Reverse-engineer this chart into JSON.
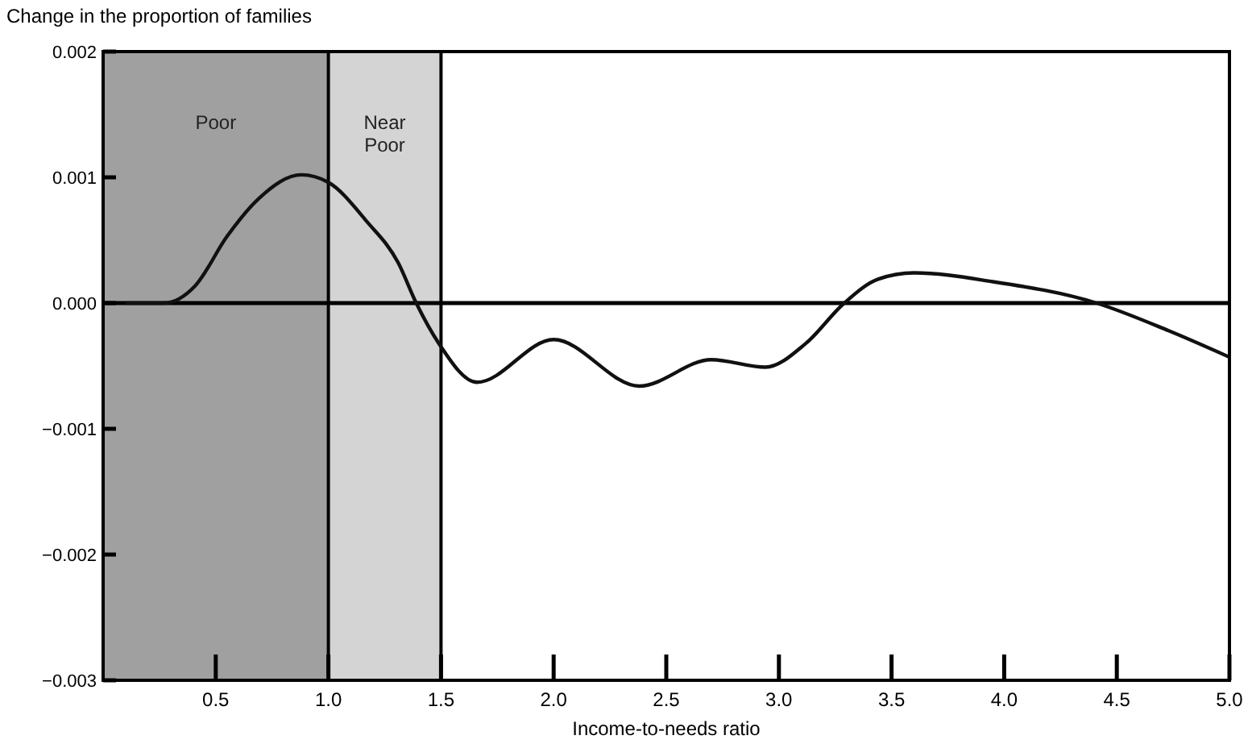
{
  "chart_data": {
    "type": "line",
    "ylabel": "Change in the proportion of families",
    "xlabel": "Income-to-needs ratio",
    "x": [
      0.1,
      0.27,
      0.41,
      0.55,
      0.69,
      0.88,
      1.0,
      1.17,
      1.31,
      1.39,
      1.49,
      1.66,
      2.0,
      2.38,
      2.7,
      2.94,
      3.12,
      3.29,
      3.44,
      3.6,
      3.95,
      4.41,
      4.73,
      5.0
    ],
    "series": [
      {
        "color": "#111111",
        "values": [
          0,
          0,
          0.00014,
          0.00053,
          0.00083,
          0.00102,
          0.00096,
          0.00065,
          0.00032,
          0,
          -0.00032,
          -0.00063,
          -0.00029,
          -0.00066,
          -0.00045,
          -0.00051,
          -0.00032,
          0,
          0.00019,
          0.00024,
          0.00017,
          0,
          -0.00022,
          -0.00043
        ]
      }
    ],
    "xlim": [
      0,
      5
    ],
    "xticks": [
      {
        "value": 0.5,
        "label": "0.5"
      },
      {
        "value": 1,
        "label": "1.0"
      },
      {
        "value": 1.5,
        "label": "1.5"
      },
      {
        "value": 2,
        "label": "2.0"
      },
      {
        "value": 2.5,
        "label": "2.5"
      },
      {
        "value": 3,
        "label": "3.0"
      },
      {
        "value": 3.5,
        "label": "3.5"
      },
      {
        "value": 4,
        "label": "4.0"
      },
      {
        "value": 4.5,
        "label": "4.5"
      },
      {
        "value": 5,
        "label": "5.0"
      }
    ],
    "ylim": [
      -0.003,
      0.002
    ],
    "yticks": [
      {
        "value": -0.003,
        "label": "−0.003"
      },
      {
        "value": -0.002,
        "label": "−0.002"
      },
      {
        "value": -0.001,
        "label": "−0.001"
      },
      {
        "value": 0,
        "label": "0.000"
      },
      {
        "value": 0.001,
        "label": "0.001"
      },
      {
        "value": 0.002,
        "label": "0.002"
      }
    ],
    "bands": [
      {
        "axis": "x",
        "from": 0,
        "to": 1,
        "label": "Poor",
        "color": "#a0a0a0"
      },
      {
        "axis": "x",
        "from": 1,
        "to": 1.5,
        "label": "Near\nPoor",
        "color": "#d4d4d4"
      }
    ],
    "ref_lines": [
      {
        "axis": "x",
        "value": 1
      },
      {
        "axis": "x",
        "value": 1.5
      },
      {
        "axis": "y",
        "value": 0
      }
    ],
    "line_style": "solid",
    "marker": "none",
    "grid": false
  }
}
